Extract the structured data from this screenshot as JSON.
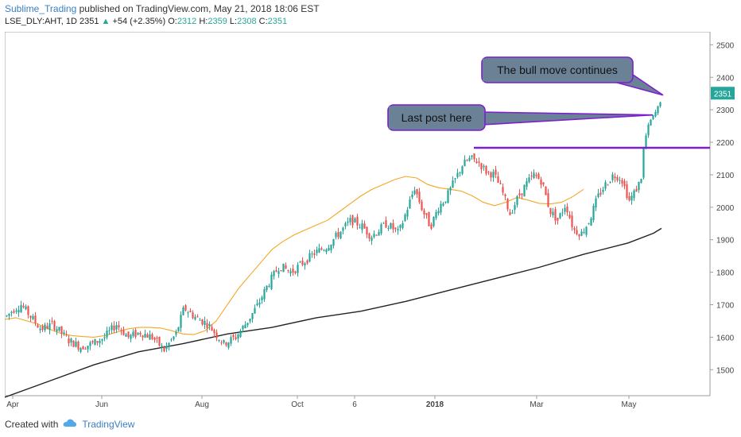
{
  "header": {
    "author": "Sublime_Trading",
    "published_text": "published on TradingView.com, May 21, 2018 18:06 EST",
    "symbol": "LSE_DLY:AHT, 1D",
    "price": "2351",
    "change_arrow": "▲",
    "change": "+54 (+2.35%)",
    "open_label": "O:",
    "open": "2312",
    "high_label": "H:",
    "high": "2359",
    "low_label": "L:",
    "low": "2308",
    "close_label": "C:",
    "close": "2351"
  },
  "footer": {
    "created_with": "Created with",
    "brand": "TradingView",
    "logo_icon": "tradingview-cloud-icon"
  },
  "colors": {
    "up": "#26a69a",
    "down": "#ef5350",
    "ma_short": "#f5a623",
    "ma_long": "#222222",
    "annotation": "#7b1fd1",
    "callout_fill": "#6b8296",
    "price_badge": "#26a69a"
  },
  "chart_data": {
    "type": "candlestick",
    "x_tick_labels": [
      "Apr",
      "Jun",
      "Aug",
      "Oct",
      "6",
      "2018",
      "Mar",
      "May"
    ],
    "y_tick_labels": [
      "1500",
      "1600",
      "1700",
      "1800",
      "1900",
      "2000",
      "2100",
      "2200",
      "2300",
      "2400",
      "2500"
    ],
    "ylim": [
      1420,
      2540
    ],
    "last_price_label": "2351",
    "horizontal_line": {
      "value": 2183
    },
    "ma_short": [
      [
        0,
        1655
      ],
      [
        14,
        1660
      ],
      [
        28,
        1650
      ],
      [
        42,
        1640
      ],
      [
        56,
        1625
      ],
      [
        70,
        1612
      ],
      [
        84,
        1605
      ],
      [
        98,
        1602
      ],
      [
        112,
        1600
      ],
      [
        126,
        1605
      ],
      [
        140,
        1615
      ],
      [
        154,
        1625
      ],
      [
        168,
        1630
      ],
      [
        182,
        1630
      ],
      [
        196,
        1628
      ],
      [
        210,
        1620
      ],
      [
        224,
        1610
      ],
      [
        238,
        1608
      ],
      [
        252,
        1620
      ],
      [
        266,
        1650
      ],
      [
        280,
        1700
      ],
      [
        294,
        1750
      ],
      [
        308,
        1790
      ],
      [
        322,
        1830
      ],
      [
        336,
        1870
      ],
      [
        350,
        1895
      ],
      [
        364,
        1915
      ],
      [
        378,
        1930
      ],
      [
        392,
        1945
      ],
      [
        406,
        1960
      ],
      [
        420,
        1985
      ],
      [
        434,
        2010
      ],
      [
        448,
        2035
      ],
      [
        462,
        2055
      ],
      [
        476,
        2070
      ],
      [
        490,
        2085
      ],
      [
        504,
        2095
      ],
      [
        518,
        2090
      ],
      [
        532,
        2070
      ],
      [
        546,
        2060
      ],
      [
        560,
        2055
      ],
      [
        574,
        2050
      ],
      [
        588,
        2035
      ],
      [
        602,
        2015
      ],
      [
        616,
        2005
      ],
      [
        630,
        2015
      ],
      [
        644,
        2030
      ],
      [
        658,
        2022
      ],
      [
        672,
        2012
      ],
      [
        686,
        2010
      ],
      [
        700,
        2015
      ],
      [
        714,
        2032
      ],
      [
        728,
        2055
      ]
    ],
    "ma_long": [
      [
        0,
        1415
      ],
      [
        56,
        1465
      ],
      [
        112,
        1515
      ],
      [
        168,
        1555
      ],
      [
        224,
        1580
      ],
      [
        280,
        1610
      ],
      [
        336,
        1630
      ],
      [
        392,
        1660
      ],
      [
        448,
        1680
      ],
      [
        504,
        1710
      ],
      [
        560,
        1745
      ],
      [
        616,
        1780
      ],
      [
        672,
        1815
      ],
      [
        728,
        1855
      ],
      [
        784,
        1890
      ],
      [
        816,
        1920
      ],
      [
        826,
        1935
      ]
    ],
    "candle_anchors": [
      [
        0,
        1660
      ],
      [
        10,
        1685
      ],
      [
        20,
        1700
      ],
      [
        30,
        1670
      ],
      [
        45,
        1625
      ],
      [
        60,
        1640
      ],
      [
        80,
        1590
      ],
      [
        95,
        1570
      ],
      [
        110,
        1580
      ],
      [
        125,
        1600
      ],
      [
        140,
        1640
      ],
      [
        155,
        1600
      ],
      [
        170,
        1615
      ],
      [
        185,
        1600
      ],
      [
        200,
        1560
      ],
      [
        215,
        1610
      ],
      [
        225,
        1690
      ],
      [
        240,
        1660
      ],
      [
        255,
        1640
      ],
      [
        265,
        1610
      ],
      [
        275,
        1580
      ],
      [
        290,
        1600
      ],
      [
        305,
        1650
      ],
      [
        318,
        1700
      ],
      [
        330,
        1760
      ],
      [
        345,
        1820
      ],
      [
        360,
        1800
      ],
      [
        375,
        1830
      ],
      [
        390,
        1860
      ],
      [
        405,
        1880
      ],
      [
        420,
        1920
      ],
      [
        435,
        1960
      ],
      [
        450,
        1940
      ],
      [
        460,
        1910
      ],
      [
        470,
        1930
      ],
      [
        480,
        1950
      ],
      [
        495,
        1920
      ],
      [
        505,
        1990
      ],
      [
        515,
        2060
      ],
      [
        525,
        1990
      ],
      [
        535,
        1940
      ],
      [
        545,
        2000
      ],
      [
        555,
        2030
      ],
      [
        565,
        2080
      ],
      [
        575,
        2130
      ],
      [
        585,
        2150
      ],
      [
        595,
        2140
      ],
      [
        605,
        2110
      ],
      [
        615,
        2100
      ],
      [
        625,
        2050
      ],
      [
        635,
        1980
      ],
      [
        645,
        2030
      ],
      [
        655,
        2070
      ],
      [
        665,
        2100
      ],
      [
        675,
        2080
      ],
      [
        685,
        1990
      ],
      [
        695,
        1960
      ],
      [
        705,
        2010
      ],
      [
        715,
        1930
      ],
      [
        725,
        1920
      ],
      [
        735,
        1960
      ],
      [
        745,
        2030
      ],
      [
        755,
        2070
      ],
      [
        765,
        2100
      ],
      [
        775,
        2090
      ],
      [
        785,
        2020
      ],
      [
        795,
        2060
      ],
      [
        800,
        2090
      ],
      [
        803,
        2180
      ],
      [
        806,
        2220
      ],
      [
        810,
        2260
      ],
      [
        815,
        2280
      ],
      [
        820,
        2300
      ],
      [
        826,
        2340
      ]
    ],
    "annotations": [
      {
        "text": "The bull move continues",
        "value": 2345
      },
      {
        "text": "Last post here",
        "value": 2284
      }
    ]
  }
}
